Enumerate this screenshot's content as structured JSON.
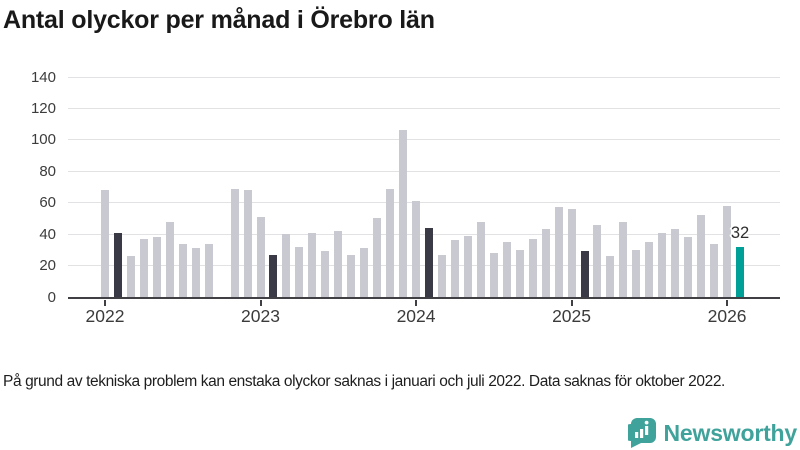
{
  "title": "Antal olyckor per månad i Örebro län",
  "footnote": "På grund av tekniska problem kan enstaka olyckor saknas i januari och juli 2022. Data saknas för oktober 2022.",
  "branding": {
    "logo_text": "Newsworthy",
    "logo_icon": "newsworthy-speech-bubble-chart-icon"
  },
  "colors": {
    "bar_default": "#c9c9d1",
    "bar_dark": "#3a3a47",
    "bar_accent": "#00a099",
    "axis": "#3f3f44",
    "gridline": "#e2e2e4",
    "brand_teal": "#3fa29b"
  },
  "chart_data": {
    "type": "bar",
    "title": "Antal olyckor per månad i Örebro län",
    "xlabel": "",
    "ylabel": "",
    "ylim": [
      0,
      140
    ],
    "yticks": [
      0,
      20,
      40,
      60,
      80,
      100,
      120,
      140
    ],
    "grid": true,
    "legend": false,
    "x_years": [
      {
        "label": "2022",
        "month_index": 0
      },
      {
        "label": "2023",
        "month_index": 12
      },
      {
        "label": "2024",
        "month_index": 24
      },
      {
        "label": "2025",
        "month_index": 36
      },
      {
        "label": "2026",
        "month_index": 48
      }
    ],
    "annotation": {
      "month_index": 49,
      "text": "32"
    },
    "months": [
      {
        "month": "2022-01",
        "value": 68,
        "style": "default"
      },
      {
        "month": "2022-02",
        "value": 41,
        "style": "dark"
      },
      {
        "month": "2022-03",
        "value": 26,
        "style": "default"
      },
      {
        "month": "2022-04",
        "value": 37,
        "style": "default"
      },
      {
        "month": "2022-05",
        "value": 38,
        "style": "default"
      },
      {
        "month": "2022-06",
        "value": 48,
        "style": "default"
      },
      {
        "month": "2022-07",
        "value": 34,
        "style": "default"
      },
      {
        "month": "2022-08",
        "value": 31,
        "style": "default"
      },
      {
        "month": "2022-09",
        "value": 34,
        "style": "default"
      },
      {
        "month": "2022-10",
        "value": null,
        "style": "default"
      },
      {
        "month": "2022-11",
        "value": 69,
        "style": "default"
      },
      {
        "month": "2022-12",
        "value": 68,
        "style": "default"
      },
      {
        "month": "2023-01",
        "value": 51,
        "style": "default"
      },
      {
        "month": "2023-02",
        "value": 27,
        "style": "dark"
      },
      {
        "month": "2023-03",
        "value": 40,
        "style": "default"
      },
      {
        "month": "2023-04",
        "value": 32,
        "style": "default"
      },
      {
        "month": "2023-05",
        "value": 41,
        "style": "default"
      },
      {
        "month": "2023-06",
        "value": 29,
        "style": "default"
      },
      {
        "month": "2023-07",
        "value": 42,
        "style": "default"
      },
      {
        "month": "2023-08",
        "value": 27,
        "style": "default"
      },
      {
        "month": "2023-09",
        "value": 31,
        "style": "default"
      },
      {
        "month": "2023-10",
        "value": 50,
        "style": "default"
      },
      {
        "month": "2023-11",
        "value": 69,
        "style": "default"
      },
      {
        "month": "2023-12",
        "value": 106,
        "style": "default"
      },
      {
        "month": "2024-01",
        "value": 61,
        "style": "default"
      },
      {
        "month": "2024-02",
        "value": 44,
        "style": "dark"
      },
      {
        "month": "2024-03",
        "value": 27,
        "style": "default"
      },
      {
        "month": "2024-04",
        "value": 36,
        "style": "default"
      },
      {
        "month": "2024-05",
        "value": 39,
        "style": "default"
      },
      {
        "month": "2024-06",
        "value": 48,
        "style": "default"
      },
      {
        "month": "2024-07",
        "value": 28,
        "style": "default"
      },
      {
        "month": "2024-08",
        "value": 35,
        "style": "default"
      },
      {
        "month": "2024-09",
        "value": 30,
        "style": "default"
      },
      {
        "month": "2024-10",
        "value": 37,
        "style": "default"
      },
      {
        "month": "2024-11",
        "value": 43,
        "style": "default"
      },
      {
        "month": "2024-12",
        "value": 57,
        "style": "default"
      },
      {
        "month": "2025-01",
        "value": 56,
        "style": "default"
      },
      {
        "month": "2025-02",
        "value": 29,
        "style": "dark"
      },
      {
        "month": "2025-03",
        "value": 46,
        "style": "default"
      },
      {
        "month": "2025-04",
        "value": 26,
        "style": "default"
      },
      {
        "month": "2025-05",
        "value": 48,
        "style": "default"
      },
      {
        "month": "2025-06",
        "value": 30,
        "style": "default"
      },
      {
        "month": "2025-07",
        "value": 35,
        "style": "default"
      },
      {
        "month": "2025-08",
        "value": 41,
        "style": "default"
      },
      {
        "month": "2025-09",
        "value": 43,
        "style": "default"
      },
      {
        "month": "2025-10",
        "value": 38,
        "style": "default"
      },
      {
        "month": "2025-11",
        "value": 52,
        "style": "default"
      },
      {
        "month": "2025-12",
        "value": 34,
        "style": "default"
      },
      {
        "month": "2026-01",
        "value": 58,
        "style": "default"
      },
      {
        "month": "2026-02",
        "value": 32,
        "style": "accent"
      }
    ]
  }
}
